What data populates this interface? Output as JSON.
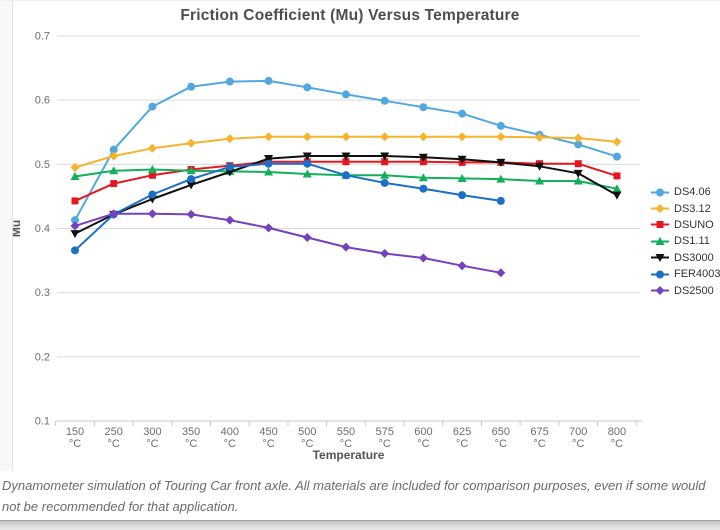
{
  "page": {
    "caption": "Dynamometer simulation of Touring Car front axle. All materials are included for comparison purposes, even if some would not be recommended for that application."
  },
  "chart_data": {
    "type": "line",
    "title": "Friction Coefficient (Mu) Versus Temperature",
    "xlabel": "Temperature",
    "ylabel": "Mu",
    "x_unit": "°C",
    "categories": [
      "150",
      "250",
      "300",
      "350",
      "400",
      "450",
      "500",
      "550",
      "575",
      "600",
      "625",
      "650",
      "675",
      "700",
      "800"
    ],
    "ylim": [
      0.1,
      0.7
    ],
    "y_ticks": [
      0.7,
      0.6,
      0.5,
      0.4,
      0.3,
      0.2,
      0.1
    ],
    "grid": true,
    "legend_position": "right",
    "colors": {
      "grid": "#d9d9d9",
      "axis_line": "#c9c9c9",
      "tick_label": "#6e6e6e",
      "axis_title": "#555555",
      "title": "#4d4d4d"
    },
    "series": [
      {
        "name": "DS4.06",
        "color": "#51a8e1",
        "marker": "circle",
        "values": [
          0.413,
          0.523,
          0.59,
          0.621,
          0.629,
          0.63,
          0.62,
          0.609,
          0.599,
          0.589,
          0.579,
          0.56,
          0.546,
          0.531,
          0.512
        ]
      },
      {
        "name": "DS3.12",
        "color": "#f5b32e",
        "marker": "diamond",
        "values": [
          0.495,
          0.513,
          0.525,
          0.533,
          0.54,
          0.543,
          0.543,
          0.543,
          0.543,
          0.543,
          0.543,
          0.543,
          0.542,
          0.541,
          0.535
        ]
      },
      {
        "name": "DSUNO",
        "color": "#e4181f",
        "marker": "square",
        "values": [
          0.443,
          0.47,
          0.483,
          0.492,
          0.498,
          0.504,
          0.504,
          0.504,
          0.504,
          0.504,
          0.503,
          0.503,
          0.501,
          0.501,
          0.482
        ]
      },
      {
        "name": "DS1.11",
        "color": "#13af5b",
        "marker": "triangle-up",
        "values": [
          0.481,
          0.49,
          0.492,
          0.49,
          0.489,
          0.488,
          0.485,
          0.483,
          0.483,
          0.479,
          0.478,
          0.477,
          0.474,
          0.474,
          0.462
        ]
      },
      {
        "name": "DS3000",
        "color": "#101010",
        "marker": "triangle-down",
        "values": [
          0.392,
          0.422,
          0.446,
          0.468,
          0.488,
          0.509,
          0.513,
          0.513,
          0.513,
          0.511,
          0.508,
          0.503,
          0.497,
          0.486,
          0.452
        ]
      },
      {
        "name": "FER4003",
        "color": "#1b6fc7",
        "marker": "circle",
        "values": [
          0.366,
          0.422,
          0.453,
          0.477,
          0.496,
          0.501,
          0.501,
          0.483,
          0.471,
          0.462,
          0.452,
          0.443,
          null,
          null,
          null
        ]
      },
      {
        "name": "DS2500",
        "color": "#7740be",
        "marker": "diamond",
        "values": [
          0.404,
          0.423,
          0.423,
          0.422,
          0.413,
          0.401,
          0.386,
          0.371,
          0.361,
          0.354,
          0.342,
          0.331,
          null,
          null,
          null
        ]
      }
    ]
  }
}
